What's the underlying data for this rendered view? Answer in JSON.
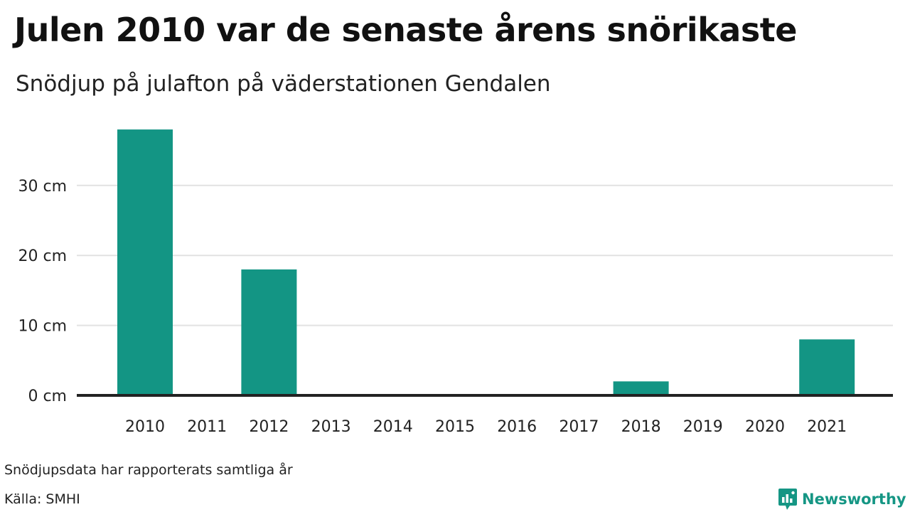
{
  "header": {
    "title": "Julen 2010 var de senaste årens snörikaste",
    "subtitle": "Snödjup på julafton på väderstationen Gendalen"
  },
  "chart_data": {
    "type": "bar",
    "title": "Julen 2010 var de senaste årens snörikaste",
    "subtitle": "Snödjup på julafton på väderstationen Gendalen",
    "categories": [
      "2010",
      "2011",
      "2012",
      "2013",
      "2014",
      "2015",
      "2016",
      "2017",
      "2018",
      "2019",
      "2020",
      "2021"
    ],
    "values": [
      38,
      0,
      18,
      0,
      0,
      0,
      0,
      0,
      2,
      0,
      0,
      8
    ],
    "unit": "cm",
    "yticks": [
      {
        "value": 0,
        "label": "0 cm"
      },
      {
        "value": 10,
        "label": "10 cm"
      },
      {
        "value": 20,
        "label": "20 cm"
      },
      {
        "value": 30,
        "label": "30 cm"
      }
    ],
    "ylim": [
      0,
      38
    ],
    "grid": true,
    "bar_color": "#139584",
    "grid_color": "#e2e2e2",
    "axis_color": "#222222"
  },
  "footer": {
    "note": "Snödjupsdata har rapporterats samtliga år",
    "source": "Källa: SMHI",
    "brand": "Newsworthy",
    "brand_color": "#159684",
    "brand_icon": "newsworthy-logo-icon"
  }
}
